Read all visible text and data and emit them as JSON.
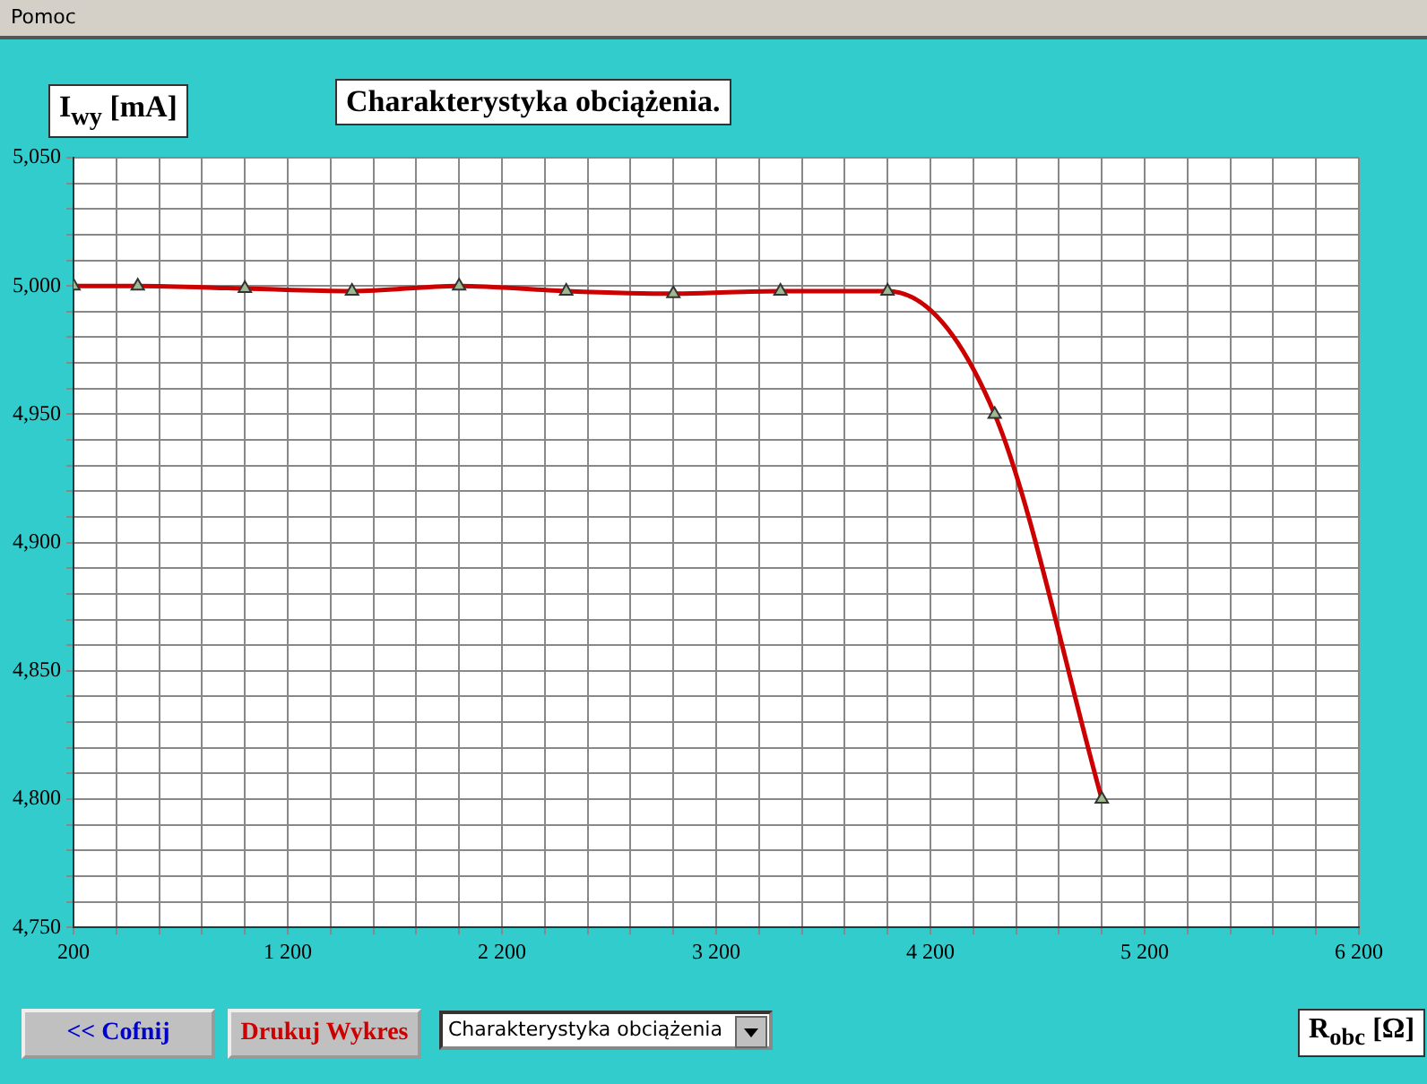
{
  "chart_data": {
    "type": "line",
    "title": "Charakterystyka obciążenia.",
    "xlabel": "R$_{obc}$ [Ω]",
    "ylabel": "I$_{wy}$ [mA]",
    "annotations": [
      "Pomoc",
      "<< Cofnij",
      "Drukuj Wykres",
      "Charakterystyka obciążenia"
    ],
    "x": [
      200,
      500,
      1000,
      1500,
      2000,
      2500,
      3000,
      3500,
      4000,
      4500,
      5000
    ],
    "series": [
      {
        "color": "#cc0000",
        "values": [
          5000,
          5000,
          4999,
          4998,
          5000,
          4998,
          4997,
          4998,
          4998,
          4950,
          4800
        ]
      }
    ],
    "xlim": [
      200,
      6200
    ],
    "xticks": [
      {
        "value": 200,
        "label": "200"
      },
      {
        "value": 400,
        "label": null
      },
      {
        "value": 600,
        "label": null
      },
      {
        "value": 800,
        "label": null
      },
      {
        "value": 1000,
        "label": null
      },
      {
        "value": 1200,
        "label": "1 200"
      },
      {
        "value": 1400,
        "label": null
      },
      {
        "value": 1600,
        "label": null
      },
      {
        "value": 1800,
        "label": null
      },
      {
        "value": 2000,
        "label": null
      },
      {
        "value": 2200,
        "label": "2 200"
      },
      {
        "value": 2400,
        "label": null
      },
      {
        "value": 2600,
        "label": null
      },
      {
        "value": 2800,
        "label": null
      },
      {
        "value": 3000,
        "label": null
      },
      {
        "value": 3200,
        "label": "3 200"
      },
      {
        "value": 3400,
        "label": null
      },
      {
        "value": 3600,
        "label": null
      },
      {
        "value": 3800,
        "label": null
      },
      {
        "value": 4000,
        "label": null
      },
      {
        "value": 4200,
        "label": "4 200"
      },
      {
        "value": 4400,
        "label": null
      },
      {
        "value": 4600,
        "label": null
      },
      {
        "value": 4800,
        "label": null
      },
      {
        "value": 5000,
        "label": null
      },
      {
        "value": 5200,
        "label": "5 200"
      },
      {
        "value": 5400,
        "label": null
      },
      {
        "value": 5600,
        "label": null
      },
      {
        "value": 5800,
        "label": null
      },
      {
        "value": 6000,
        "label": null
      },
      {
        "value": 6200,
        "label": "6 200"
      }
    ],
    "ylim": [
      4750,
      5050
    ],
    "yticks": [
      {
        "value": 4750,
        "label": "4,750"
      },
      {
        "value": 4760,
        "label": null
      },
      {
        "value": 4770,
        "label": null
      },
      {
        "value": 4780,
        "label": null
      },
      {
        "value": 4790,
        "label": null
      },
      {
        "value": 4800,
        "label": "4,800"
      },
      {
        "value": 4810,
        "label": null
      },
      {
        "value": 4820,
        "label": null
      },
      {
        "value": 4830,
        "label": null
      },
      {
        "value": 4840,
        "label": null
      },
      {
        "value": 4850,
        "label": "4,850"
      },
      {
        "value": 4860,
        "label": null
      },
      {
        "value": 4870,
        "label": null
      },
      {
        "value": 4880,
        "label": null
      },
      {
        "value": 4890,
        "label": null
      },
      {
        "value": 4900,
        "label": "4,900"
      },
      {
        "value": 4910,
        "label": null
      },
      {
        "value": 4920,
        "label": null
      },
      {
        "value": 4930,
        "label": null
      },
      {
        "value": 4940,
        "label": null
      },
      {
        "value": 4950,
        "label": "4,950"
      },
      {
        "value": 4960,
        "label": null
      },
      {
        "value": 4970,
        "label": null
      },
      {
        "value": 4980,
        "label": null
      },
      {
        "value": 4990,
        "label": null
      },
      {
        "value": 5000,
        "label": "5,000"
      },
      {
        "value": 5010,
        "label": null
      },
      {
        "value": 5020,
        "label": null
      },
      {
        "value": 5030,
        "label": null
      },
      {
        "value": 5040,
        "label": null
      },
      {
        "value": 5050,
        "label": "5,050"
      }
    ],
    "grid": true,
    "legend": false,
    "marker": "triangle",
    "line_style": "solid"
  }
}
